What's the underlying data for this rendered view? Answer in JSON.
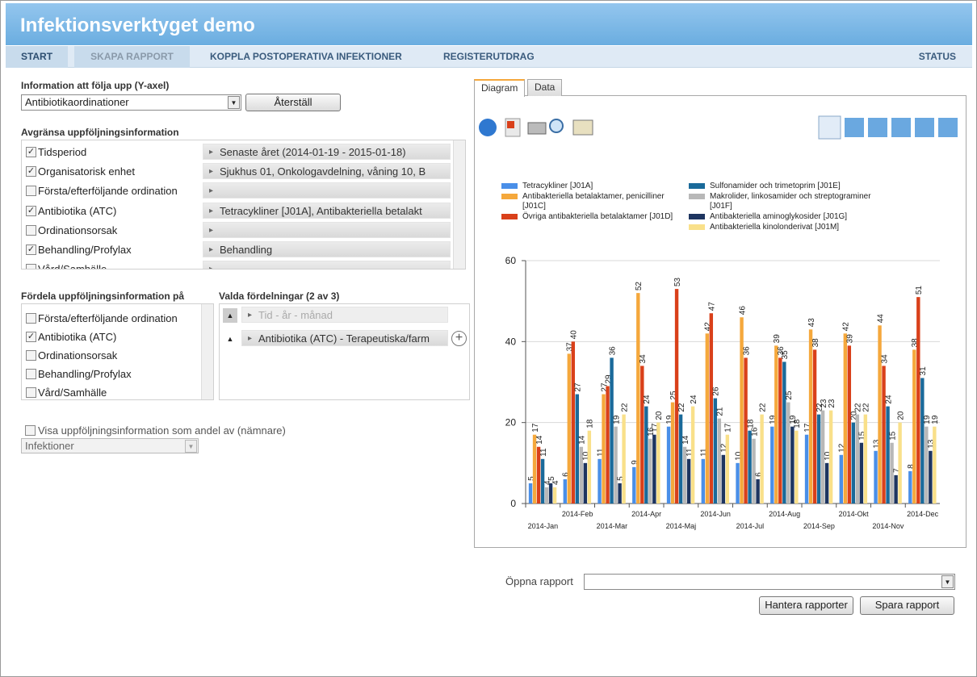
{
  "header": {
    "title": "Infektionsverktyget demo"
  },
  "nav": [
    "START",
    "SKAPA RAPPORT",
    "KOPPLA POSTOPERATIVA INFEKTIONER",
    "REGISTERUTDRAG",
    "STATUS"
  ],
  "yaxis_section": {
    "label": "Information att följa upp (Y-axel)",
    "select": "Antibiotikaordinationer",
    "reset_button": "Återställ"
  },
  "filter_section": {
    "label": "Avgränsa uppföljningsinformation",
    "options": [
      {
        "label": "Tidsperiod",
        "checked": true,
        "selection": "Senaste året (2014-01-19 - 2015-01-18)"
      },
      {
        "label": "Organisatorisk enhet",
        "checked": true,
        "selection": "Sjukhus 01, Onkologavdelning, våning 10, B"
      },
      {
        "label": "Första/efterföljande ordination",
        "checked": false
      },
      {
        "label": "Antibiotika (ATC)",
        "checked": true,
        "selection": "Tetracykliner [J01A], Antibakteriella betalakt"
      },
      {
        "label": "Ordinationsorsak",
        "checked": false
      },
      {
        "label": "Behandling/Profylax",
        "checked": true,
        "selection": "Behandling"
      },
      {
        "label": "Vård/Samhälle",
        "checked": false
      }
    ]
  },
  "distribute_section": {
    "label": "Fördela uppföljningsinformation på",
    "options": [
      {
        "label": "Första/efterföljande ordination",
        "checked": false
      },
      {
        "label": "Antibiotika (ATC)",
        "checked": true
      },
      {
        "label": "Ordinationsorsak",
        "checked": false
      },
      {
        "label": "Behandling/Profylax",
        "checked": false
      },
      {
        "label": "Vård/Samhälle",
        "checked": false
      }
    ],
    "chosen_label": "Valda fördelningar (2 av 3)",
    "chosen": [
      {
        "text": "Tid - år - månad",
        "enabled": false
      },
      {
        "text": "Antibiotika (ATC) - Terapeutiska/farm",
        "enabled": true
      }
    ]
  },
  "denominator": {
    "label": "Visa uppföljningsinformation som andel av (nämnare)",
    "checked": false,
    "select": "Infektioner"
  },
  "tabs": [
    "Diagram",
    "Data"
  ],
  "chart_data": {
    "type": "bar",
    "categories": [
      "2014-Jan",
      "2014-Feb",
      "2014-Mar",
      "2014-Apr",
      "2014-Maj",
      "2014-Jun",
      "2014-Jul",
      "2014-Aug",
      "2014-Sep",
      "2014-Okt",
      "2014-Nov",
      "2014-Dec"
    ],
    "series": [
      {
        "name": "Tetracykliner [J01A]",
        "color": "#4a8fe8",
        "values": [
          5,
          6,
          11,
          9,
          19,
          11,
          10,
          19,
          17,
          12,
          13,
          8
        ]
      },
      {
        "name": "Antibakteriella betalaktamer, penicilliner [J01C]",
        "color": "#f5a83c",
        "values": [
          17,
          37,
          27,
          52,
          25,
          42,
          46,
          39,
          43,
          42,
          44,
          38
        ]
      },
      {
        "name": "Övriga antibakteriella betalaktamer [J01D]",
        "color": "#d9401a",
        "values": [
          14,
          40,
          29,
          34,
          53,
          47,
          36,
          36,
          38,
          39,
          34,
          51
        ]
      },
      {
        "name": "Sulfonamider och trimetoprim [J01E]",
        "color": "#1a6a9a",
        "values": [
          11,
          27,
          36,
          24,
          22,
          26,
          18,
          35,
          22,
          20,
          24,
          31
        ]
      },
      {
        "name": "Makrolider, linkosamider och streptograminer [J01F]",
        "color": "#b8b8b8",
        "values": [
          4,
          14,
          19,
          16,
          14,
          21,
          16,
          25,
          23,
          22,
          15,
          19
        ]
      },
      {
        "name": "Antibakteriella aminoglykosider [J01G]",
        "color": "#1e3560",
        "values": [
          5,
          10,
          5,
          17,
          11,
          12,
          6,
          19,
          10,
          15,
          7,
          13
        ]
      },
      {
        "name": "Antibakteriella kinolonderivat [J01M]",
        "color": "#f9e08a",
        "values": [
          4,
          18,
          22,
          20,
          24,
          17,
          22,
          18,
          23,
          22,
          20,
          19
        ]
      }
    ],
    "ylim": [
      0,
      60
    ],
    "yticks": [
      0,
      20,
      40,
      60
    ],
    "grid": true
  },
  "report": {
    "label": "Öppna rapport",
    "buttons": [
      "Hantera rapporter",
      "Spara rapport"
    ]
  }
}
